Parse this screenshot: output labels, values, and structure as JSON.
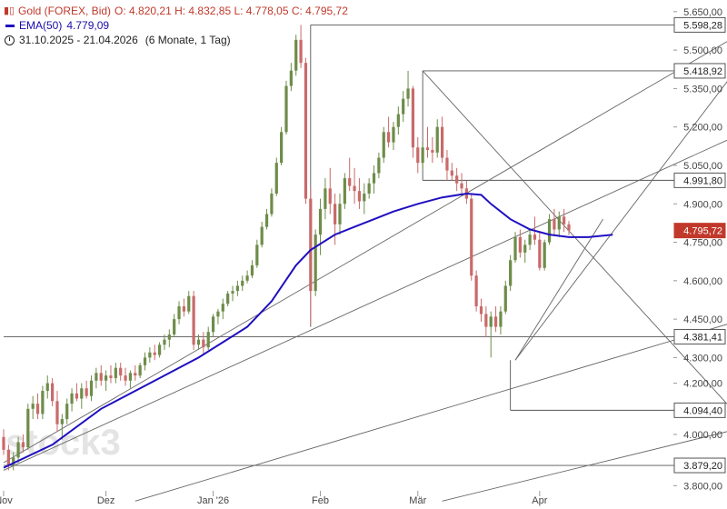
{
  "legend": {
    "instrument": "Gold (FOREX, Bid)",
    "ohlc": "O: 4.820,21  H: 4.832,85  L: 4.778,05  C: 4.795,72",
    "ema_label": "EMA(50)",
    "ema_value": "4.779,09",
    "range": "31.10.2025 - 21.04.2026",
    "range_detail": "(6 Monate, 1 Tag)",
    "candle_icon": "candlestick-icon",
    "clock_icon": "clock-icon"
  },
  "watermark": "stock3",
  "colors": {
    "up": "#6e8c4a",
    "down": "#c96a6a",
    "ema": "#1f0fc0",
    "grid_line": "#555555",
    "price_box_current": "#c0392b"
  },
  "chart_data": {
    "type": "candlestick",
    "title": "Gold (FOREX, Bid)",
    "ylim": [
      3780,
      5660
    ],
    "y_ticks": [
      "5.650,00",
      "5.500,00",
      "5.350,00",
      "5.200,00",
      "5.050,00",
      "4.900,00",
      "4.750,00",
      "4.600,00",
      "4.450,00",
      "4.300,00",
      "4.200,00",
      "4.000,00",
      "3.800,00"
    ],
    "y_tick_values": [
      5650,
      5500,
      5350,
      5200,
      5050,
      4900,
      4750,
      4600,
      4450,
      4300,
      4200,
      4000,
      3800
    ],
    "x_labels": [
      {
        "label": "Nov",
        "index": 0
      },
      {
        "label": "Dez",
        "index": 21
      },
      {
        "label": "Jan '26",
        "index": 43
      },
      {
        "label": "Feb",
        "index": 65
      },
      {
        "label": "Mär",
        "index": 85
      },
      {
        "label": "Apr",
        "index": 110
      }
    ],
    "price_levels": [
      {
        "label": "5.598,28",
        "value": 5598.28,
        "from_index": 63
      },
      {
        "label": "5.418,92",
        "value": 5418.92,
        "from_index": 86
      },
      {
        "label": "4.991,80",
        "value": 4991.8,
        "from_index": 86
      },
      {
        "label": "4.381,41",
        "value": 4381.41,
        "from_index": 0
      },
      {
        "label": "4.094,40",
        "value": 4094.4,
        "from_index": 104
      },
      {
        "label": "3.879,20",
        "value": 3879.2,
        "from_index": 0
      }
    ],
    "current_price": {
      "label": "4.795,72",
      "value": 4795.72
    },
    "trendlines": [
      {
        "from": [
          0,
          3890
        ],
        "to": [
          159,
          5650
        ]
      },
      {
        "from": [
          0,
          3860
        ],
        "to": [
          159,
          5240
        ]
      },
      {
        "from": [
          27,
          3740
        ],
        "to": [
          159,
          4490
        ]
      },
      {
        "from": [
          90,
          3740
        ],
        "to": [
          159,
          4060
        ]
      },
      {
        "from": [
          86,
          5418.92
        ],
        "to": [
          159,
          3900
        ]
      },
      {
        "from": [
          105,
          4290
        ],
        "to": [
          159,
          5640
        ]
      },
      {
        "from": [
          105,
          4290
        ],
        "to": [
          123,
          4840
        ]
      }
    ],
    "ema50": [
      [
        0,
        3870
      ],
      [
        10,
        3960
      ],
      [
        20,
        4100
      ],
      [
        30,
        4200
      ],
      [
        40,
        4300
      ],
      [
        45,
        4360
      ],
      [
        50,
        4420
      ],
      [
        55,
        4520
      ],
      [
        60,
        4660
      ],
      [
        63,
        4720
      ],
      [
        68,
        4780
      ],
      [
        72,
        4810
      ],
      [
        76,
        4840
      ],
      [
        80,
        4870
      ],
      [
        85,
        4900
      ],
      [
        90,
        4925
      ],
      [
        95,
        4940
      ],
      [
        98,
        4935
      ],
      [
        100,
        4900
      ],
      [
        104,
        4840
      ],
      [
        108,
        4800
      ],
      [
        112,
        4780
      ],
      [
        116,
        4770
      ],
      [
        120,
        4770
      ],
      [
        125,
        4779.09
      ]
    ],
    "candles": [
      [
        3990,
        4020,
        3920,
        3940
      ],
      [
        3940,
        3960,
        3860,
        3880
      ],
      [
        3880,
        3930,
        3860,
        3910
      ],
      [
        3910,
        3990,
        3890,
        3970
      ],
      [
        3970,
        4000,
        3930,
        3950
      ],
      [
        3950,
        4120,
        3940,
        4100
      ],
      [
        4100,
        4150,
        4060,
        4120
      ],
      [
        4120,
        4160,
        4060,
        4080
      ],
      [
        4080,
        4190,
        4060,
        4170
      ],
      [
        4170,
        4230,
        4140,
        4200
      ],
      [
        4200,
        4220,
        4110,
        4130
      ],
      [
        4130,
        4170,
        4010,
        4040
      ],
      [
        4040,
        4080,
        3980,
        4060
      ],
      [
        4060,
        4140,
        4040,
        4120
      ],
      [
        4120,
        4180,
        4090,
        4160
      ],
      [
        4160,
        4200,
        4130,
        4140
      ],
      [
        4140,
        4200,
        4100,
        4180
      ],
      [
        4180,
        4210,
        4140,
        4150
      ],
      [
        4150,
        4230,
        4130,
        4210
      ],
      [
        4210,
        4260,
        4180,
        4240
      ],
      [
        4240,
        4270,
        4190,
        4210
      ],
      [
        4210,
        4250,
        4170,
        4230
      ],
      [
        4230,
        4270,
        4200,
        4220
      ],
      [
        4220,
        4280,
        4200,
        4260
      ],
      [
        4260,
        4280,
        4210,
        4230
      ],
      [
        4230,
        4260,
        4190,
        4210
      ],
      [
        4210,
        4250,
        4180,
        4240
      ],
      [
        4240,
        4270,
        4210,
        4230
      ],
      [
        4230,
        4280,
        4220,
        4270
      ],
      [
        4270,
        4320,
        4250,
        4300
      ],
      [
        4300,
        4340,
        4280,
        4320
      ],
      [
        4320,
        4350,
        4290,
        4310
      ],
      [
        4310,
        4360,
        4300,
        4350
      ],
      [
        4350,
        4390,
        4330,
        4370
      ],
      [
        4370,
        4410,
        4340,
        4390
      ],
      [
        4390,
        4470,
        4380,
        4450
      ],
      [
        4450,
        4520,
        4430,
        4500
      ],
      [
        4500,
        4530,
        4460,
        4480
      ],
      [
        4480,
        4560,
        4470,
        4540
      ],
      [
        4540,
        4560,
        4330,
        4350
      ],
      [
        4350,
        4390,
        4330,
        4370
      ],
      [
        4370,
        4400,
        4310,
        4340
      ],
      [
        4340,
        4420,
        4330,
        4400
      ],
      [
        4400,
        4470,
        4380,
        4460
      ],
      [
        4460,
        4490,
        4430,
        4480
      ],
      [
        4480,
        4530,
        4450,
        4510
      ],
      [
        4510,
        4560,
        4500,
        4550
      ],
      [
        4550,
        4580,
        4520,
        4560
      ],
      [
        4560,
        4600,
        4540,
        4580
      ],
      [
        4580,
        4620,
        4560,
        4600
      ],
      [
        4600,
        4640,
        4590,
        4620
      ],
      [
        4620,
        4680,
        4610,
        4660
      ],
      [
        4660,
        4760,
        4650,
        4740
      ],
      [
        4740,
        4830,
        4730,
        4810
      ],
      [
        4810,
        4880,
        4800,
        4860
      ],
      [
        4860,
        4960,
        4850,
        4940
      ],
      [
        4940,
        5080,
        4930,
        5060
      ],
      [
        5060,
        5200,
        5050,
        5180
      ],
      [
        5180,
        5380,
        5170,
        5360
      ],
      [
        5360,
        5450,
        5340,
        5420
      ],
      [
        5420,
        5560,
        5400,
        5540
      ],
      [
        5540,
        5598.28,
        5430,
        5450
      ],
      [
        5450,
        5470,
        4900,
        4920
      ],
      [
        4920,
        4960,
        4430,
        4560
      ],
      [
        4560,
        4800,
        4540,
        4780
      ],
      [
        4780,
        4920,
        4700,
        4880
      ],
      [
        4880,
        5000,
        4840,
        4960
      ],
      [
        4960,
        5040,
        4860,
        4900
      ],
      [
        4900,
        4940,
        4740,
        4820
      ],
      [
        4820,
        4940,
        4780,
        4900
      ],
      [
        4900,
        5020,
        4880,
        5000
      ],
      [
        5000,
        5080,
        4950,
        4970
      ],
      [
        4970,
        5040,
        4900,
        4950
      ],
      [
        4950,
        5000,
        4880,
        4910
      ],
      [
        4910,
        4980,
        4860,
        4940
      ],
      [
        4940,
        5000,
        4920,
        4980
      ],
      [
        4980,
        5050,
        4940,
        5020
      ],
      [
        5020,
        5100,
        5000,
        5080
      ],
      [
        5080,
        5200,
        5060,
        5180
      ],
      [
        5180,
        5240,
        5120,
        5140
      ],
      [
        5140,
        5220,
        5110,
        5200
      ],
      [
        5200,
        5280,
        5170,
        5250
      ],
      [
        5250,
        5340,
        5220,
        5310
      ],
      [
        5310,
        5418.92,
        5280,
        5350
      ],
      [
        5350,
        5360,
        5080,
        5120
      ],
      [
        5120,
        5160,
        5020,
        5060
      ],
      [
        5060,
        5140,
        5040,
        5120
      ],
      [
        5120,
        5200,
        5080,
        5110
      ],
      [
        5110,
        5160,
        5060,
        5100
      ],
      [
        5100,
        5230,
        5080,
        5200
      ],
      [
        5200,
        5240,
        5060,
        5080
      ],
      [
        5080,
        5110,
        4990,
        5030
      ],
      [
        5030,
        5060,
        4991.8,
        5010
      ],
      [
        5010,
        5040,
        4950,
        4980
      ],
      [
        4980,
        5020,
        4930,
        4960
      ],
      [
        4960,
        4990,
        4900,
        4920
      ],
      [
        4920,
        4940,
        4600,
        4620
      ],
      [
        4620,
        4640,
        4480,
        4500
      ],
      [
        4500,
        4530,
        4440,
        4470
      ],
      [
        4470,
        4500,
        4380,
        4420
      ],
      [
        4420,
        4480,
        4300,
        4460
      ],
      [
        4460,
        4500,
        4400,
        4420
      ],
      [
        4420,
        4500,
        4390,
        4480
      ],
      [
        4480,
        4600,
        4470,
        4580
      ],
      [
        4580,
        4700,
        4560,
        4680
      ],
      [
        4680,
        4790,
        4670,
        4770
      ],
      [
        4770,
        4800,
        4690,
        4710
      ],
      [
        4710,
        4760,
        4670,
        4740
      ],
      [
        4740,
        4800,
        4720,
        4780
      ],
      [
        4780,
        4850,
        4740,
        4760
      ],
      [
        4760,
        4790,
        4640,
        4650
      ],
      [
        4650,
        4760,
        4640,
        4750
      ],
      [
        4750,
        4860,
        4740,
        4840
      ],
      [
        4840,
        4880,
        4780,
        4800
      ],
      [
        4800,
        4870,
        4770,
        4850
      ],
      [
        4850,
        4880,
        4790,
        4820
      ],
      [
        4820,
        4832.85,
        4778.05,
        4795.72
      ]
    ]
  }
}
